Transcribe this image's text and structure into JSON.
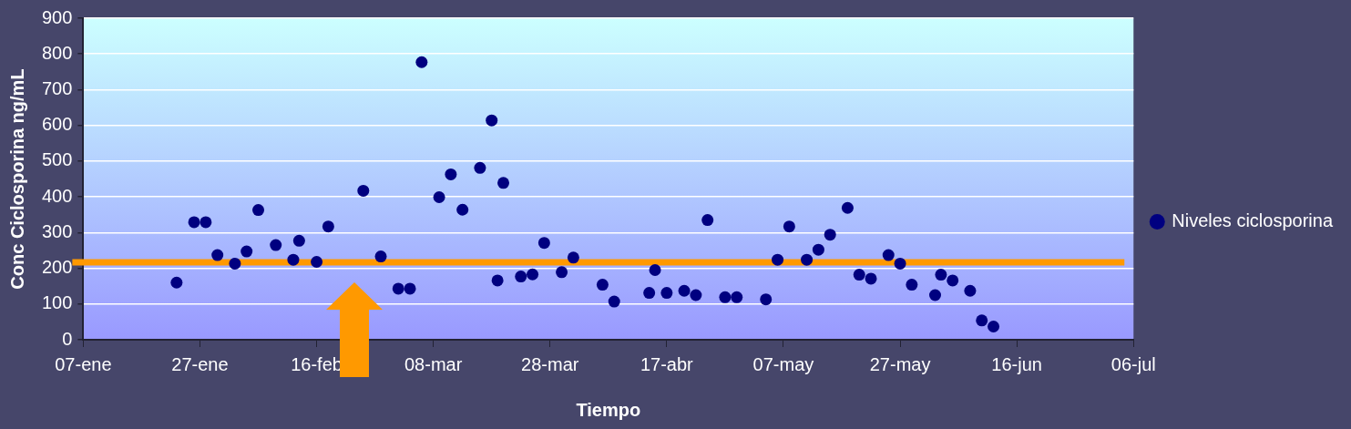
{
  "chart_data": {
    "type": "scatter",
    "xlabel": "Tiempo",
    "ylabel": "Conc Ciclosporina ng/mL",
    "legend": "right",
    "grid": "y",
    "marker": "circle",
    "xlim": [
      "--01-07",
      "--07-06"
    ],
    "xticks": [
      {
        "value": "--01-07",
        "label": "07-ene"
      },
      {
        "value": "--01-27",
        "label": "27-ene"
      },
      {
        "value": "--02-16",
        "label": "16-feb"
      },
      {
        "value": "--03-08",
        "label": "08-mar"
      },
      {
        "value": "--03-28",
        "label": "28-mar"
      },
      {
        "value": "--04-17",
        "label": "17-abr"
      },
      {
        "value": "--05-07",
        "label": "07-may"
      },
      {
        "value": "--05-27",
        "label": "27-may"
      },
      {
        "value": "--06-16",
        "label": "16-jun"
      },
      {
        "value": "--07-06",
        "label": "06-jul"
      }
    ],
    "ylim": [
      0,
      900
    ],
    "yticks": [
      0,
      100,
      200,
      300,
      400,
      500,
      600,
      700,
      800,
      900
    ],
    "ref_lines": [
      {
        "axis": "y",
        "value": 217,
        "color": "#ff9900"
      }
    ],
    "series": [
      {
        "name": "Niveles ciclosporina",
        "color": "#000080",
        "x": [
          "--01-23",
          "--01-26",
          "--01-28",
          "--01-30",
          "--02-02",
          "--02-04",
          "--02-06",
          "--02-09",
          "--02-12",
          "--02-13",
          "--02-16",
          "--02-18",
          "--02-24",
          "--02-27",
          "--03-02",
          "--03-04",
          "--03-06",
          "--03-09",
          "--03-11",
          "--03-13",
          "--03-16",
          "--03-18",
          "--03-19",
          "--03-20",
          "--03-23",
          "--03-25",
          "--03-27",
          "--03-30",
          "--04-01",
          "--04-06",
          "--04-08",
          "--04-14",
          "--04-15",
          "--04-17",
          "--04-20",
          "--04-22",
          "--04-24",
          "--04-27",
          "--04-29",
          "--05-04",
          "--05-06",
          "--05-08",
          "--05-11",
          "--05-13",
          "--05-15",
          "--05-18",
          "--05-20",
          "--05-22",
          "--05-25",
          "--05-27",
          "--05-29",
          "--06-02",
          "--06-03",
          "--06-05",
          "--06-08",
          "--06-10",
          "--06-12"
        ],
        "values": [
          160,
          329,
          329,
          237,
          213,
          247,
          363,
          265,
          224,
          277,
          218,
          317,
          417,
          233,
          143,
          143,
          777,
          399,
          463,
          364,
          481,
          614,
          166,
          439,
          177,
          183,
          271,
          189,
          230,
          154,
          107,
          131,
          195,
          131,
          137,
          125,
          335,
          119,
          119,
          113,
          224,
          317,
          224,
          252,
          294,
          369,
          182,
          171,
          237,
          213,
          154,
          125,
          182,
          166,
          137,
          54,
          37
        ]
      }
    ]
  }
}
